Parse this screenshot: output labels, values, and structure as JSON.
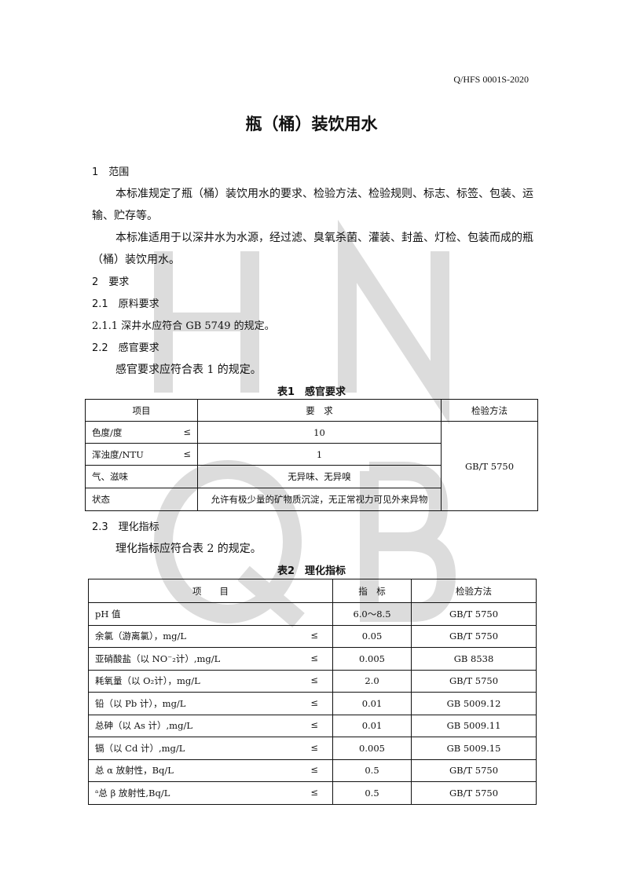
{
  "watermark": [
    "H",
    "N",
    "Q",
    "B"
  ],
  "std_code": "Q/HFS 0001S-2020",
  "title": "瓶（桶）装饮用水",
  "s1": {
    "heading": "1　范围",
    "p1a": "本标准规定了瓶（桶）装饮用水的要求、检验方法、检验规则、标志、标签、包装、运",
    "p1b": "输、贮存等。",
    "p2a": "本标准适用于以深井水为水源，经过滤、臭氧杀菌、灌装、封盖、灯检、包装而成的瓶",
    "p2b": "（桶）装饮用水。"
  },
  "s2": {
    "heading": "2　要求",
    "h21": "2.1　原料要求",
    "p211": "2.1.1 深井水应符合 GB 5749 的规定。",
    "h22": "2.2　感官要求",
    "p22": "感官要求应符合表 1 的规定。",
    "h23": "2.3　理化指标",
    "p23": "理化指标应符合表 2 的规定。"
  },
  "table1": {
    "caption": "表1　感官要求",
    "headers": [
      "项目",
      "要　求",
      "检验方法"
    ],
    "method": "GB/T 5750",
    "rows": [
      {
        "item": "色度/度",
        "le": "≤",
        "req": "10"
      },
      {
        "item": "浑浊度/NTU",
        "le": "≤",
        "req": "1"
      },
      {
        "item": "气、滋味",
        "le": "",
        "req": "无异味、无异嗅"
      },
      {
        "item": "状态",
        "le": "",
        "req": "允许有极少量的矿物质沉淀，无正常视力可见外来异物"
      }
    ]
  },
  "table2": {
    "caption": "表2　理化指标",
    "headers": [
      "项　　目",
      "指　标",
      "检验方法"
    ],
    "rows": [
      {
        "item": "pH 值",
        "le": "",
        "val": "6.0～8.5",
        "method": "GB/T 5750"
      },
      {
        "item": "余氯（游离氯），mg/L",
        "le": "≤",
        "val": "0.05",
        "method": "GB/T 5750"
      },
      {
        "item": "亚硝酸盐（以 NO⁻₂计）,mg/L",
        "le": "≤",
        "val": "0.005",
        "method": "GB 8538"
      },
      {
        "item": "耗氧量（以 O₂计），mg/L",
        "le": "≤",
        "val": "2.0",
        "method": "GB/T 5750"
      },
      {
        "item": "铅（以 Pb 计），mg/L",
        "le": "≤",
        "val": "0.01",
        "method": "GB 5009.12"
      },
      {
        "item": "总砷（以 As 计）,mg/L",
        "le": "≤",
        "val": "0.01",
        "method": "GB 5009.11"
      },
      {
        "item": "镉（以 Cd 计）,mg/L",
        "le": "≤",
        "val": "0.005",
        "method": "GB 5009.15"
      },
      {
        "item": "总 α 放射性，Bq/L",
        "le": "≤",
        "val": "0.5",
        "method": "GB/T 5750"
      },
      {
        "item": "ᵃ总 β 放射性,Bq/L",
        "le": "≤",
        "val": "0.5",
        "method": "GB/T 5750"
      }
    ]
  }
}
